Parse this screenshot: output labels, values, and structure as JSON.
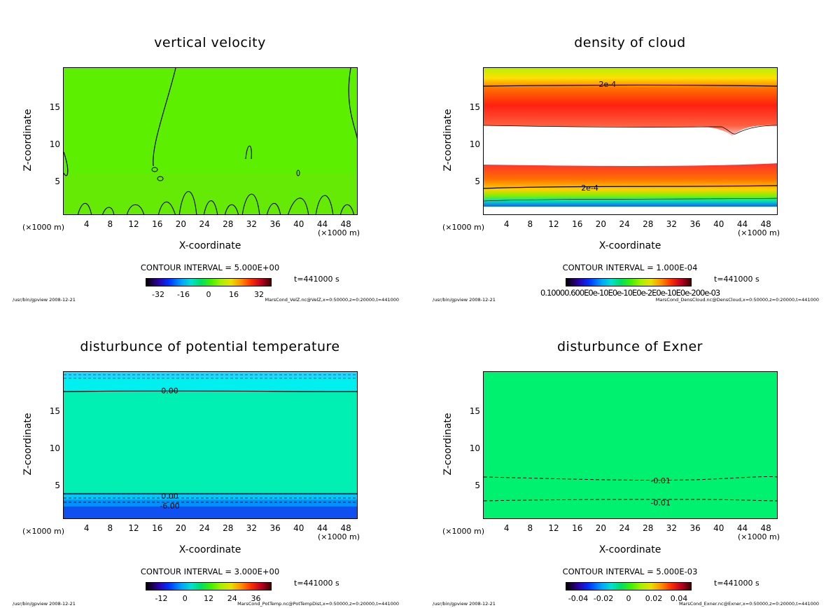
{
  "axes": {
    "xlabel": "X-coordinate",
    "ylabel": "Z-coordinate",
    "x_unit_left": "(×1000 m)",
    "x_unit_right": "(×1000 m)",
    "xticks": [
      "4",
      "8",
      "12",
      "16",
      "20",
      "24",
      "28",
      "32",
      "36",
      "40",
      "44",
      "48"
    ],
    "yticks": [
      "5",
      "10",
      "15"
    ],
    "xlim": [
      0,
      50
    ],
    "ylim": [
      0,
      20
    ]
  },
  "footer_left": "/usr/bin/gpview  2008-12-21",
  "time_label": "t=441000  s",
  "chart_data": [
    {
      "type": "heatmap",
      "title": "vertical velocity",
      "contour_interval": "CONTOUR INTERVAL = 5.000E+00",
      "colorbar_ticks": [
        "-32",
        "-16",
        "0",
        "16",
        "32"
      ],
      "colorbar_values": [
        -32,
        -16,
        0,
        16,
        32
      ],
      "colorbar_range": [
        -40,
        40
      ],
      "footer_right": "MarsCond_VelZ.nc@VelZ,x=0:50000,z=0:20000,t=441000",
      "contour_labels": []
    },
    {
      "type": "heatmap",
      "title": "density of cloud",
      "contour_interval": "CONTOUR INTERVAL = 1.000E-04",
      "colorbar_ticks": [],
      "colorbar_overlap_text": "0.10000.600E0e-10E0e-10E0e-2E0e-10E0e-200e-03",
      "footer_right": "MarsCond_DensCloud.nc@DensCloud,x=0:50000,z=0:20000,t=441000",
      "contour_labels": [
        {
          "text": "2e-4",
          "x": 21,
          "z": 17.8
        },
        {
          "text": "2e-4",
          "x": 18,
          "z": 3.8
        }
      ]
    },
    {
      "type": "heatmap",
      "title": "disturbunce of potential temperature",
      "contour_interval": "CONTOUR INTERVAL = 3.000E+00",
      "colorbar_ticks": [
        "-12",
        "0",
        "12",
        "24",
        "36"
      ],
      "colorbar_values": [
        -12,
        0,
        12,
        24,
        36
      ],
      "colorbar_range": [
        -20,
        44
      ],
      "footer_right": "MarsCond_PotTemp.nc@PotTempDist,x=0:50000,z=0:20000,t=441000",
      "contour_labels": [
        {
          "text": "0.00",
          "x": 18,
          "z": 17.5
        },
        {
          "text": "0.00",
          "x": 18,
          "z": 3.2
        },
        {
          "text": "-6.00",
          "x": 18,
          "z": 1.9
        }
      ]
    },
    {
      "type": "heatmap",
      "title": "disturbunce of Exner",
      "contour_interval": "CONTOUR INTERVAL = 5.000E-03",
      "colorbar_ticks": [
        "-0.04",
        "-0.02",
        "0",
        "0.02",
        "0.04"
      ],
      "colorbar_values": [
        -0.04,
        -0.02,
        0,
        0.02,
        0.04
      ],
      "colorbar_range": [
        -0.05,
        0.05
      ],
      "footer_right": "MarsCond_Exner.nc@Exner,x=0:50000,z=0:20000,t=441000",
      "contour_labels": [
        {
          "text": "-0.01",
          "x": 30,
          "z": 5.3
        },
        {
          "text": "-0.01",
          "x": 30,
          "z": 2.3
        }
      ]
    }
  ]
}
